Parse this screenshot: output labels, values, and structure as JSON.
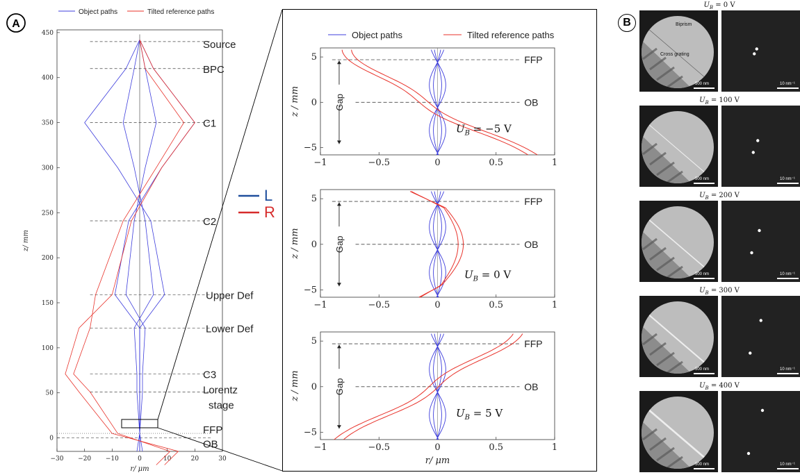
{
  "panel_a": {
    "badge": "A",
    "legend": [
      "Object paths",
      "Tilted reference paths"
    ],
    "xlabel": "r/ μm",
    "ylabel": "z/ mm",
    "x_ticks": [
      "−30",
      "−20",
      "−10",
      "0",
      "10",
      "20",
      "30"
    ],
    "y_ticks": [
      "450",
      "400",
      "350",
      "300",
      "250",
      "200",
      "150",
      "100",
      "50",
      "0"
    ],
    "planes": [
      {
        "label": "Source",
        "z": 440
      },
      {
        "label": "BPC",
        "z": 410
      },
      {
        "label": "C1",
        "z": 350
      },
      {
        "label": "C2",
        "z": 241
      },
      {
        "label": "Upper Def",
        "z": 159
      },
      {
        "label": "Lower Def",
        "z": 122
      },
      {
        "label": "C3",
        "z": 71
      },
      {
        "label": "Lorentz",
        "z": 51
      },
      {
        "label": "FFP",
        "z": 5
      },
      {
        "label": "OB",
        "z": 0
      }
    ],
    "stage_label": "stage",
    "key": [
      {
        "label": "L",
        "color": "#1f4e9c"
      },
      {
        "label": "R",
        "color": "#d62b2b"
      }
    ]
  },
  "zoom": {
    "legend": [
      "Object paths",
      "Tilted reference paths"
    ],
    "xlabel": "r/ μm",
    "ylabel": "z / mm",
    "gap_label": "Gap",
    "ffp_label": "FFP",
    "ob_label": "OB",
    "x_ticks": [
      "−1",
      "−0.5",
      "0",
      "0.5",
      "1"
    ],
    "y_ticks": [
      "5",
      "0",
      "−5"
    ],
    "subplots": [
      {
        "ub_label": "U_B = −5 V",
        "ub_text": "= −5 V"
      },
      {
        "ub_label": "U_B = 0 V",
        "ub_text": "= 0 V"
      },
      {
        "ub_label": "U_B = 5 V",
        "ub_text": "= 5 V"
      }
    ]
  },
  "panel_b": {
    "badge": "B",
    "rows": [
      {
        "title_var": "U",
        "title_sub": "B",
        "title_val": " = 0 V",
        "spot_sep": 0.05
      },
      {
        "title_var": "U",
        "title_sub": "B",
        "title_val": " = 100 V",
        "spot_sep": 0.15
      },
      {
        "title_var": "U",
        "title_sub": "B",
        "title_val": " = 200 V",
        "spot_sep": 0.3
      },
      {
        "title_var": "U",
        "title_sub": "B",
        "title_val": " = 300 V",
        "spot_sep": 0.45
      },
      {
        "title_var": "U",
        "title_sub": "B",
        "title_val": " = 400 V",
        "spot_sep": 0.6
      }
    ],
    "biprism_label": "Biprism",
    "grating_label": "Cross grating",
    "scale_real": "500 nm",
    "scale_recip": "10 nm⁻¹"
  },
  "colors": {
    "blue": "#3c3cdc",
    "red": "#e8322a"
  }
}
